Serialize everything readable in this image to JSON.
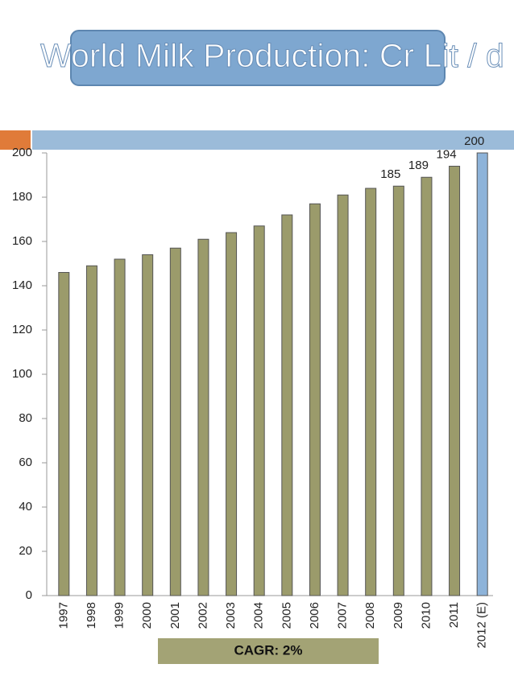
{
  "chart_data": {
    "type": "bar",
    "title": "World Milk Production: Cr Lit / d",
    "categories": [
      "1997",
      "1998",
      "1999",
      "2000",
      "2001",
      "2002",
      "2003",
      "2004",
      "2005",
      "2006",
      "2007",
      "2008",
      "2009",
      "2010",
      "2011",
      "2012 (E)"
    ],
    "values": [
      146,
      149,
      152,
      154,
      157,
      161,
      164,
      167,
      172,
      177,
      181,
      184,
      185,
      189,
      194,
      200
    ],
    "value_labels": [
      null,
      null,
      null,
      null,
      null,
      null,
      null,
      null,
      null,
      null,
      null,
      null,
      "185",
      "189",
      "194",
      "200"
    ],
    "colors": [
      "#9b9b6b",
      "#9b9b6b",
      "#9b9b6b",
      "#9b9b6b",
      "#9b9b6b",
      "#9b9b6b",
      "#9b9b6b",
      "#9b9b6b",
      "#9b9b6b",
      "#9b9b6b",
      "#9b9b6b",
      "#9b9b6b",
      "#9b9b6b",
      "#9b9b6b",
      "#9b9b6b",
      "#8db3d9"
    ],
    "ylim": [
      0,
      200
    ],
    "yticks": [
      0,
      20,
      40,
      60,
      80,
      100,
      120,
      140,
      160,
      180,
      200
    ],
    "grid": false,
    "annotation": "CAGR: 2%"
  }
}
